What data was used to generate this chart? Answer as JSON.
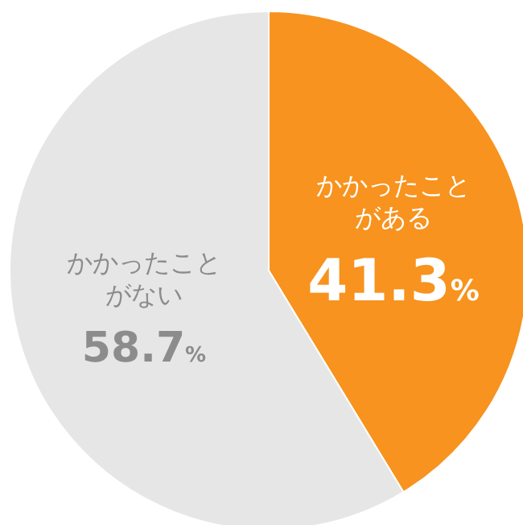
{
  "chart_data": {
    "type": "pie",
    "categories": [
      "かかったことがある",
      "かかったことがない"
    ],
    "values": [
      41.3,
      58.7
    ],
    "colors": [
      "#f7931e",
      "#e6e6e6"
    ],
    "value_labels": [
      "41.3%",
      "58.7%"
    ],
    "legend": false
  }
}
